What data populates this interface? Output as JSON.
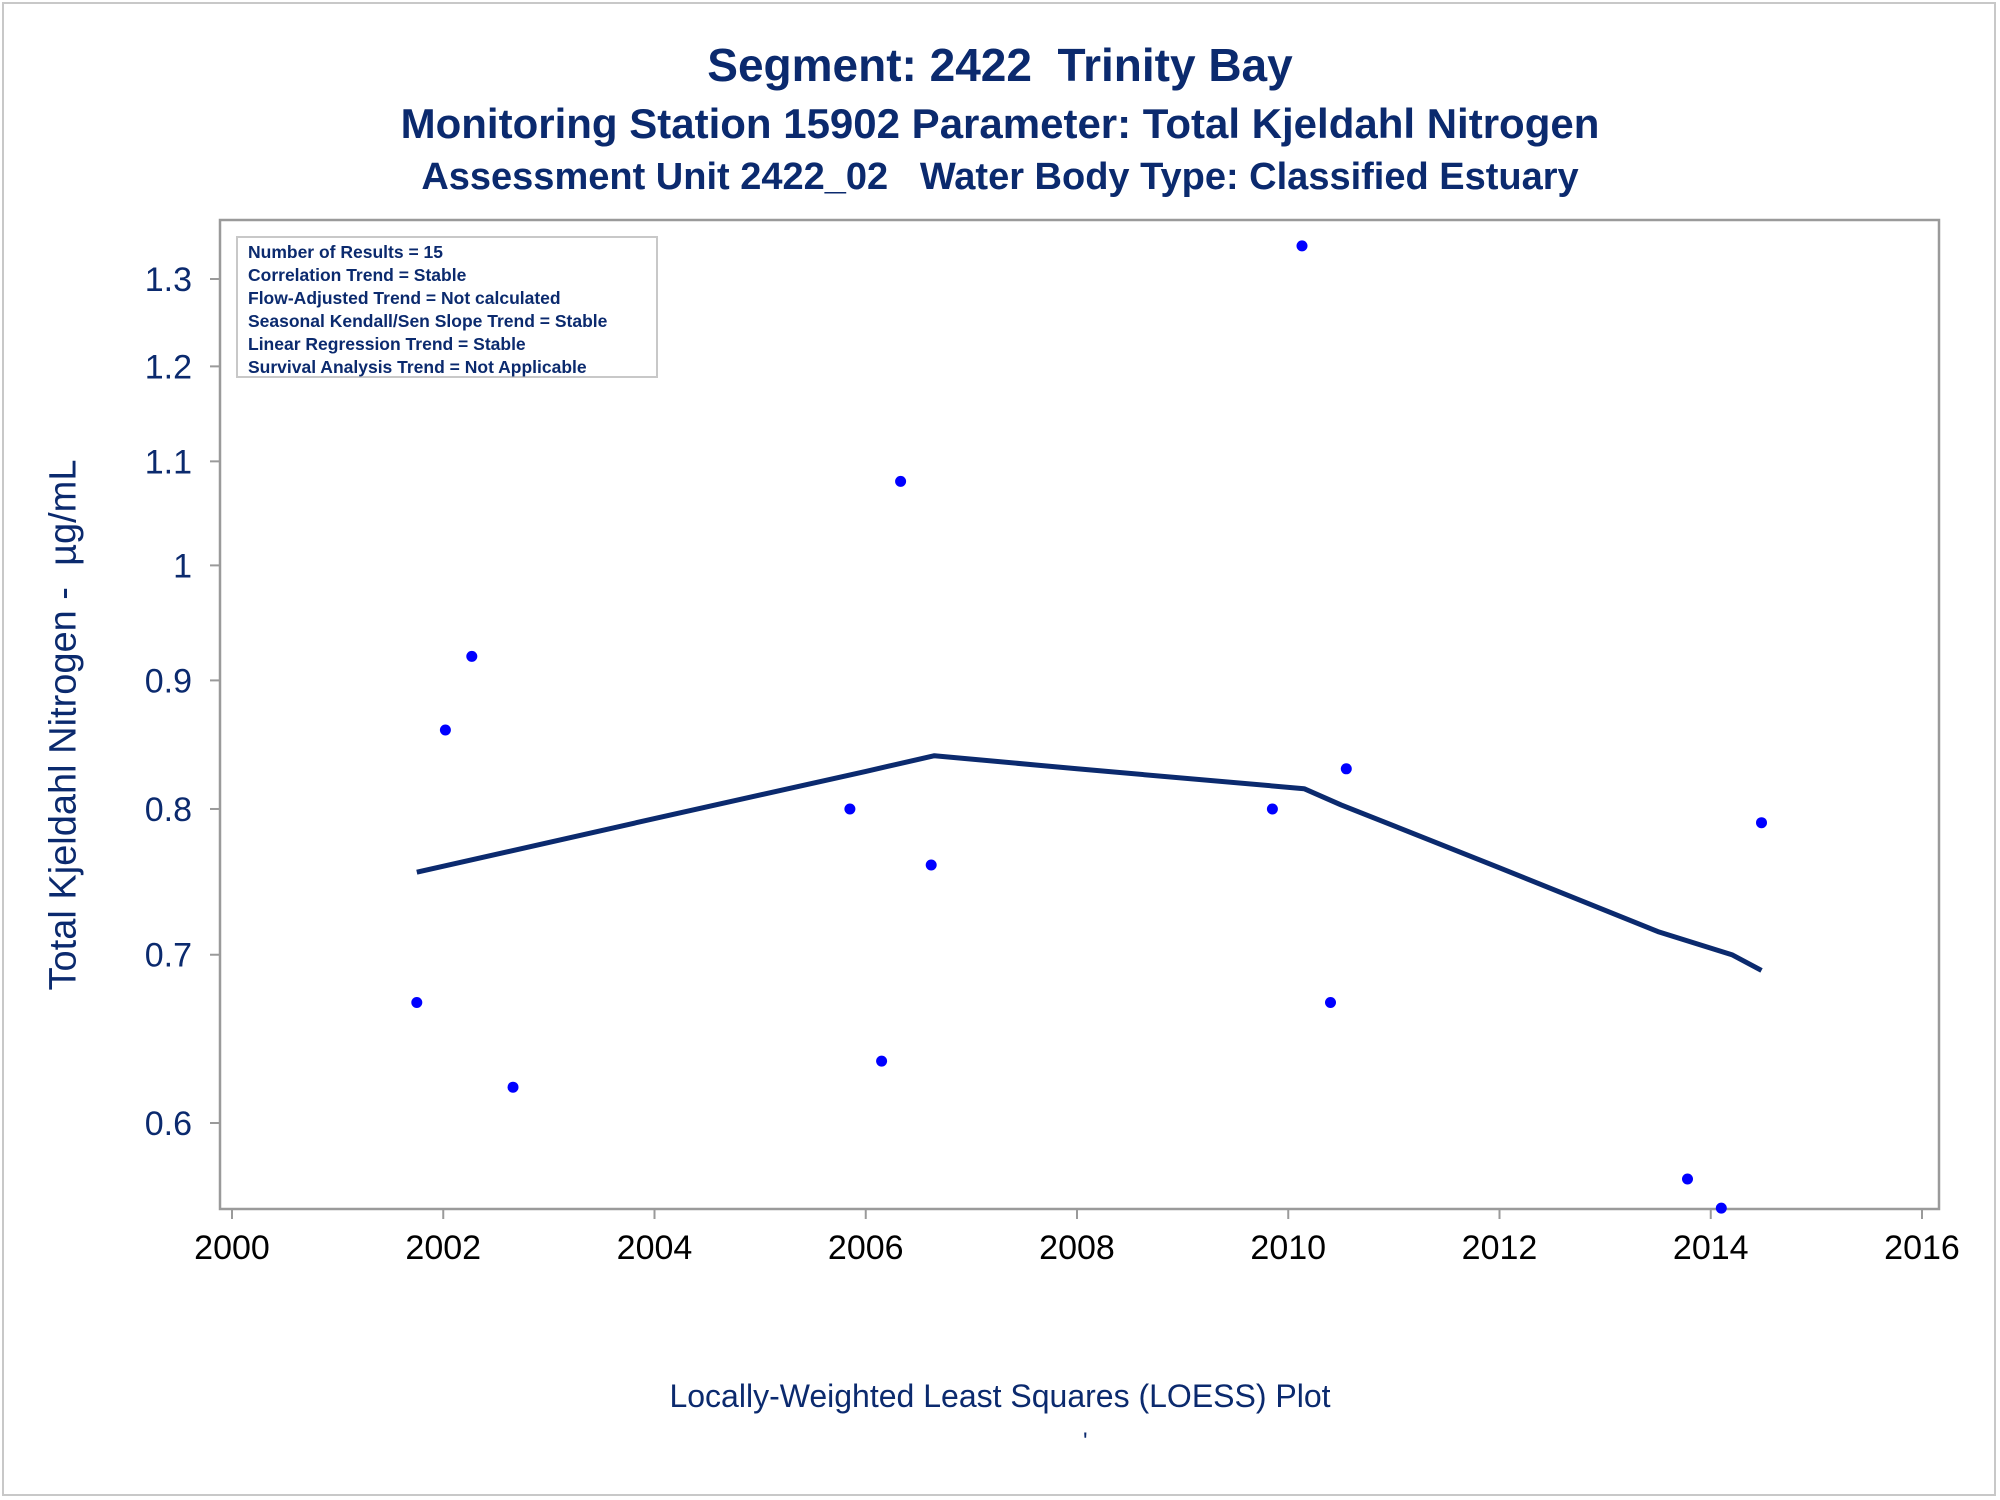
{
  "titles": {
    "line1": "Segment: 2422  Trinity Bay",
    "line2": "Monitoring Station 15902 Parameter: Total Kjeldahl Nitrogen",
    "line3": "Assessment Unit 2422_02   Water Body Type: Classified Estuary"
  },
  "footnote": "Locally-Weighted Least Squares (LOESS) Plot",
  "tick_glyph": "'",
  "info_box": [
    "Number of Results = 15",
    "Correlation Trend = Stable",
    "Flow-Adjusted Trend = Not calculated",
    "Seasonal Kendall/Sen Slope Trend = Stable",
    "Linear Regression Trend = Stable",
    "Survival Analysis Trend = Not Applicable"
  ],
  "colors": {
    "text": "#0b2a6e",
    "points": "#0000ff",
    "loess_line": "#0b2a6e",
    "frame": "#9a9a9a"
  },
  "chart_data": {
    "type": "scatter",
    "ylabel": "Total Kjeldahl Nitrogen -  µg/mL",
    "xlabel": "",
    "y_scale": "log",
    "xlim": [
      2000,
      2016
    ],
    "ylim": [
      0.545,
      1.36
    ],
    "x_ticks": [
      2000,
      2002,
      2004,
      2006,
      2008,
      2010,
      2012,
      2014,
      2016
    ],
    "x_tick_labels": [
      "2000",
      "2002",
      "2004",
      "2006",
      "2008",
      "2010",
      "2012",
      "2014",
      "2016"
    ],
    "y_ticks": [
      0.6,
      0.7,
      0.8,
      0.9,
      1.0,
      1.1,
      1.2,
      1.3
    ],
    "y_tick_labels": [
      "0.6",
      "0.7",
      "0.8",
      "0.9",
      "1",
      "1.1",
      "1.2",
      "1.3"
    ],
    "series": [
      {
        "type": "scatter",
        "points": [
          [
            2001.75,
            0.67
          ],
          [
            2002.02,
            0.86
          ],
          [
            2002.27,
            0.92
          ],
          [
            2002.66,
            0.62
          ],
          [
            2005.85,
            0.8
          ],
          [
            2006.15,
            0.635
          ],
          [
            2006.33,
            1.08
          ],
          [
            2006.62,
            0.76
          ],
          [
            2009.85,
            0.8
          ],
          [
            2010.13,
            1.34
          ],
          [
            2010.4,
            0.67
          ],
          [
            2010.55,
            0.83
          ],
          [
            2013.78,
            0.57
          ],
          [
            2014.1,
            0.555
          ],
          [
            2014.48,
            0.79
          ]
        ]
      },
      {
        "type": "line",
        "points": [
          [
            2001.75,
            0.755
          ],
          [
            2004.0,
            0.793
          ],
          [
            2006.0,
            0.828
          ],
          [
            2006.65,
            0.84
          ],
          [
            2008.0,
            0.83
          ],
          [
            2010.15,
            0.815
          ],
          [
            2010.5,
            0.803
          ],
          [
            2012.0,
            0.758
          ],
          [
            2013.5,
            0.715
          ],
          [
            2014.2,
            0.7
          ],
          [
            2014.48,
            0.69
          ]
        ]
      }
    ]
  }
}
